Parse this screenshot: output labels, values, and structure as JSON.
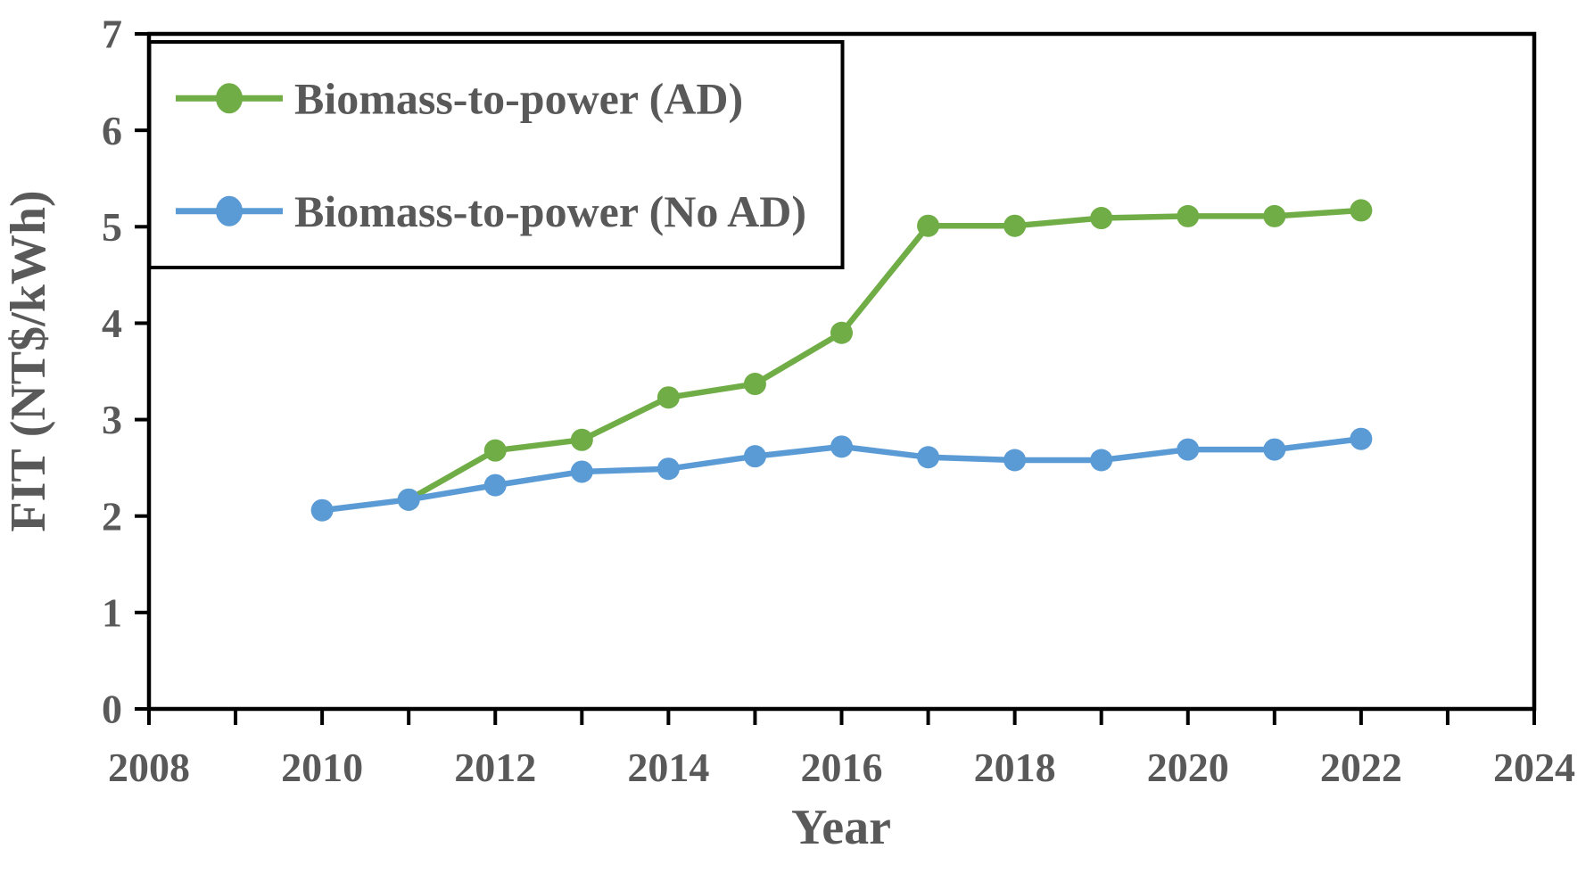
{
  "figure": {
    "background": "#ffffff"
  },
  "chart_data": {
    "type": "line",
    "title": "",
    "xlabel": "Year",
    "ylabel": "FIT (NT$/kWh)",
    "xlim": [
      2008,
      2024
    ],
    "ylim": [
      0,
      7
    ],
    "grid": false,
    "axis_color": "#000000",
    "text_color": "#595959",
    "x_minor_tick_step": 1,
    "x_label_step": 2,
    "x_tick_labels": [
      "2008",
      "2010",
      "2012",
      "2014",
      "2016",
      "2018",
      "2020",
      "2022",
      "2024"
    ],
    "y_ticks": [
      "0",
      "1",
      "2",
      "3",
      "4",
      "5",
      "6",
      "7"
    ],
    "legend": {
      "position": "top-left",
      "border_color": "#000000",
      "background": "#ffffff"
    },
    "series": [
      {
        "name": "Biomass-to-power (AD)",
        "color": "#70AD47",
        "x": [
          2011,
          2012,
          2013,
          2014,
          2015,
          2016,
          2017,
          2018,
          2019,
          2020,
          2021,
          2022
        ],
        "values": [
          2.17,
          2.68,
          2.79,
          3.23,
          3.37,
          3.9,
          5.01,
          5.01,
          5.09,
          5.11,
          5.11,
          5.17
        ]
      },
      {
        "name": "Biomass-to-power (No AD)",
        "color": "#5B9BD5",
        "x": [
          2010,
          2011,
          2012,
          2013,
          2014,
          2015,
          2016,
          2017,
          2018,
          2019,
          2020,
          2021,
          2022
        ],
        "values": [
          2.06,
          2.17,
          2.32,
          2.46,
          2.49,
          2.62,
          2.72,
          2.61,
          2.58,
          2.58,
          2.69,
          2.69,
          2.8
        ]
      }
    ]
  }
}
